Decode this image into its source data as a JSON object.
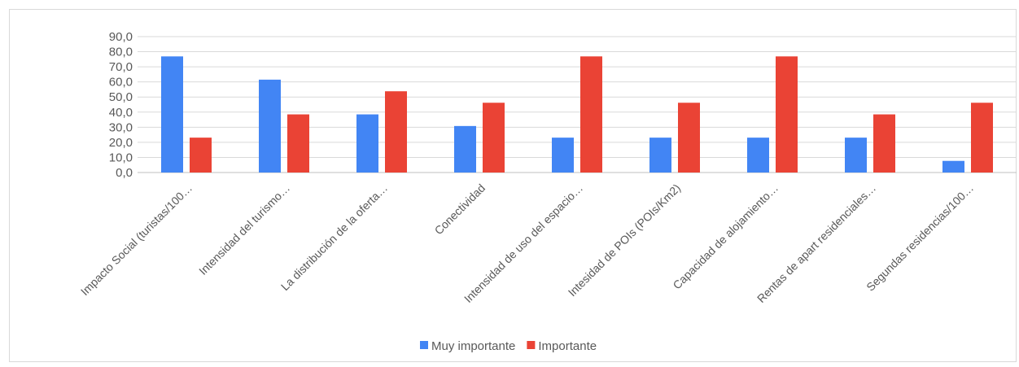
{
  "chart_data": {
    "type": "bar",
    "title": "",
    "xlabel": "",
    "ylabel": "",
    "ylim": [
      0,
      90
    ],
    "yticks": [
      "0,0",
      "10,0",
      "20,0",
      "30,0",
      "40,0",
      "50,0",
      "60,0",
      "70,0",
      "80,0",
      "90,0"
    ],
    "ytick_values": [
      0,
      10,
      20,
      30,
      40,
      50,
      60,
      70,
      80,
      90
    ],
    "grid": true,
    "legend_position": "bottom",
    "categories": [
      "Impacto Social (turistas/100…",
      "Intensidad del turismo…",
      "La distribución de la oferta…",
      "Conectividad",
      "Intensidad de uso del espacio…",
      "Intesidad de POIs (POIs/Km2)",
      "Capacidad de alojamiento…",
      "Rentas de apart residenciales…",
      "Segundas residencias/100…"
    ],
    "series": [
      {
        "name": "Muy importante",
        "color": "#4285f4",
        "values": [
          76.9,
          61.5,
          38.5,
          30.8,
          23.1,
          23.1,
          23.1,
          23.1,
          7.7
        ]
      },
      {
        "name": "Importante",
        "color": "#ea4335",
        "values": [
          23.1,
          38.5,
          53.8,
          46.2,
          76.9,
          46.2,
          76.9,
          38.5,
          46.2
        ]
      }
    ]
  }
}
